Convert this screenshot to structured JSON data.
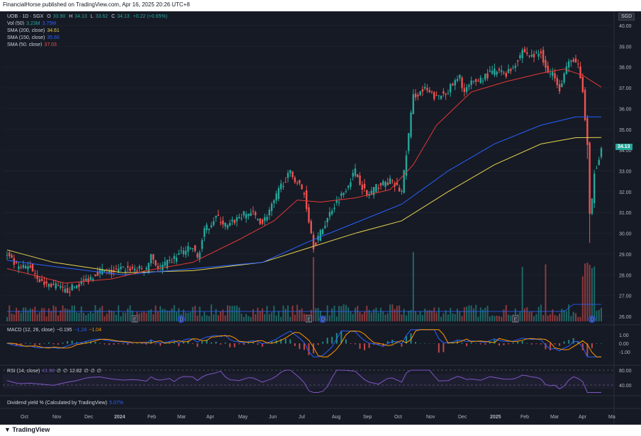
{
  "header": {
    "published": "FinancialHorse published on TradingView.com, Apr 16, 2025 20:26 UTC+8"
  },
  "footer": {
    "brand": "TradingView"
  },
  "legend": {
    "symbol": "UOB · 1D · SGX",
    "ohlc": {
      "o_label": "O",
      "o": "33.90",
      "h_label": "H",
      "h": "34.13",
      "l_label": "L",
      "l": "33.62",
      "c_label": "C",
      "c": "34.13",
      "chg": "+0.22 (+0.65%)"
    },
    "vol": {
      "label": "Vol (50)",
      "v1": "3.23M",
      "v2": "3.75M"
    },
    "sma200": {
      "label": "SMA (200, close)",
      "value": "34.61"
    },
    "sma150": {
      "label": "SMA (150, close)",
      "value": "35.60"
    },
    "sma50": {
      "label": "SMA (50, close)",
      "value": "37.03"
    },
    "macd": {
      "label": "MACD (12, 26, close)",
      "v1": "−0.195",
      "v2": "−1.24",
      "v3": "−1.04"
    },
    "rsi": {
      "label": "RSI (14, close)",
      "v1": "41.98",
      "v2": "∅",
      "v3": "∅",
      "v4": "12.82",
      "v5": "∅",
      "v6": "∅",
      "v7": "∅"
    },
    "div": {
      "label": "Dividend yield % (Calculated by TradingView)",
      "value": "5.07%"
    }
  },
  "currency": "SGD",
  "last_price": "34.13",
  "colors": {
    "up": "#26a69a",
    "down": "#ef5350",
    "sma200": "#e8d44d",
    "sma150": "#2962ff",
    "sma50": "#e53935",
    "rsi": "#7e57c2",
    "bg": "#161a25"
  },
  "chart_data": {
    "type": "candlestick",
    "price_axis": {
      "ticks": [
        "40.00",
        "39.00",
        "38.00",
        "37.00",
        "36.00",
        "35.00",
        "34.00",
        "33.00",
        "32.00",
        "31.00",
        "30.00",
        "29.00",
        "28.00",
        "27.00",
        "26.00"
      ],
      "ylim": [
        25.8,
        40.3
      ]
    },
    "macd_axis": {
      "ticks": [
        "1.00",
        "0.00",
        "-1.00"
      ]
    },
    "rsi_axis": {
      "ticks": [
        "80.00",
        "40.00"
      ]
    },
    "x_ticks": [
      "Oct",
      "Nov",
      "Dec",
      "2024",
      "Feb",
      "Mar",
      "Apr",
      "May",
      "Jun",
      "Jul",
      "Aug",
      "Sep",
      "Oct",
      "Nov",
      "Dec",
      "2025",
      "Feb",
      "Mar",
      "Apr",
      "Ma"
    ],
    "x_bold": [
      "2024",
      "2025"
    ],
    "close_path": [
      [
        0,
        28.9
      ],
      [
        5,
        28.3
      ],
      [
        10,
        28.4
      ],
      [
        15,
        27.6
      ],
      [
        20,
        27.5
      ],
      [
        25,
        27.2
      ],
      [
        30,
        27.5
      ],
      [
        35,
        27.8
      ],
      [
        40,
        28.2
      ],
      [
        45,
        28.1
      ],
      [
        50,
        28.3
      ],
      [
        55,
        28.3
      ],
      [
        60,
        28.2
      ],
      [
        62,
        29.0
      ],
      [
        65,
        28.3
      ],
      [
        70,
        28.6
      ],
      [
        75,
        29.1
      ],
      [
        80,
        29.3
      ],
      [
        82,
        28.8
      ],
      [
        85,
        30.1
      ],
      [
        90,
        30.8
      ],
      [
        95,
        30.3
      ],
      [
        100,
        30.8
      ],
      [
        105,
        31.0
      ],
      [
        110,
        30.5
      ],
      [
        115,
        31.5
      ],
      [
        118,
        32.3
      ],
      [
        122,
        32.9
      ],
      [
        126,
        32.3
      ],
      [
        128,
        31.9
      ],
      [
        132,
        29.4
      ],
      [
        135,
        30.0
      ],
      [
        140,
        31.2
      ],
      [
        145,
        32.0
      ],
      [
        150,
        33.0
      ],
      [
        152,
        32.5
      ],
      [
        155,
        31.8
      ],
      [
        160,
        32.3
      ],
      [
        165,
        32.5
      ],
      [
        170,
        32.0
      ],
      [
        175,
        36.6
      ],
      [
        180,
        36.9
      ],
      [
        185,
        36.5
      ],
      [
        190,
        36.9
      ],
      [
        195,
        37.5
      ],
      [
        197,
        36.8
      ],
      [
        200,
        37.2
      ],
      [
        205,
        37.5
      ],
      [
        210,
        37.8
      ],
      [
        215,
        37.7
      ],
      [
        218,
        38.0
      ],
      [
        222,
        38.8
      ],
      [
        226,
        38.5
      ],
      [
        230,
        38.7
      ],
      [
        233,
        37.7
      ],
      [
        236,
        37.6
      ],
      [
        238,
        37.0
      ],
      [
        241,
        38.0
      ],
      [
        244,
        38.4
      ],
      [
        246,
        38.0
      ],
      [
        248,
        36.8
      ],
      [
        249,
        35.5
      ],
      [
        250,
        34.2
      ],
      [
        251,
        30.8
      ],
      [
        252,
        31.5
      ],
      [
        253,
        33.0
      ],
      [
        254,
        33.3
      ],
      [
        255,
        33.7
      ],
      [
        256,
        34.13
      ]
    ],
    "series": [
      {
        "name": "SMA (200, close)",
        "values": [
          [
            0,
            29.2
          ],
          [
            20,
            28.6
          ],
          [
            50,
            28.1
          ],
          [
            80,
            28.2
          ],
          [
            110,
            28.6
          ],
          [
            130,
            29.3
          ],
          [
            150,
            30.0
          ],
          [
            170,
            30.6
          ],
          [
            190,
            32.0
          ],
          [
            210,
            33.3
          ],
          [
            230,
            34.3
          ],
          [
            245,
            34.6
          ],
          [
            256,
            34.61
          ]
        ]
      },
      {
        "name": "SMA (150, close)",
        "values": [
          [
            0,
            28.7
          ],
          [
            20,
            28.4
          ],
          [
            50,
            28.0
          ],
          [
            80,
            28.3
          ],
          [
            110,
            28.6
          ],
          [
            130,
            29.6
          ],
          [
            150,
            30.5
          ],
          [
            170,
            31.4
          ],
          [
            190,
            33.0
          ],
          [
            210,
            34.3
          ],
          [
            230,
            35.2
          ],
          [
            245,
            35.6
          ],
          [
            256,
            35.6
          ]
        ]
      },
      {
        "name": "SMA (50, close)",
        "values": [
          [
            0,
            28.3
          ],
          [
            25,
            27.6
          ],
          [
            45,
            27.8
          ],
          [
            60,
            28.2
          ],
          [
            80,
            28.6
          ],
          [
            100,
            29.7
          ],
          [
            115,
            30.6
          ],
          [
            125,
            31.6
          ],
          [
            135,
            31.5
          ],
          [
            150,
            31.7
          ],
          [
            165,
            32.1
          ],
          [
            175,
            33.3
          ],
          [
            185,
            35.2
          ],
          [
            200,
            36.8
          ],
          [
            215,
            37.3
          ],
          [
            230,
            37.7
          ],
          [
            240,
            37.9
          ],
          [
            248,
            37.6
          ],
          [
            256,
            37.03
          ]
        ]
      }
    ]
  }
}
